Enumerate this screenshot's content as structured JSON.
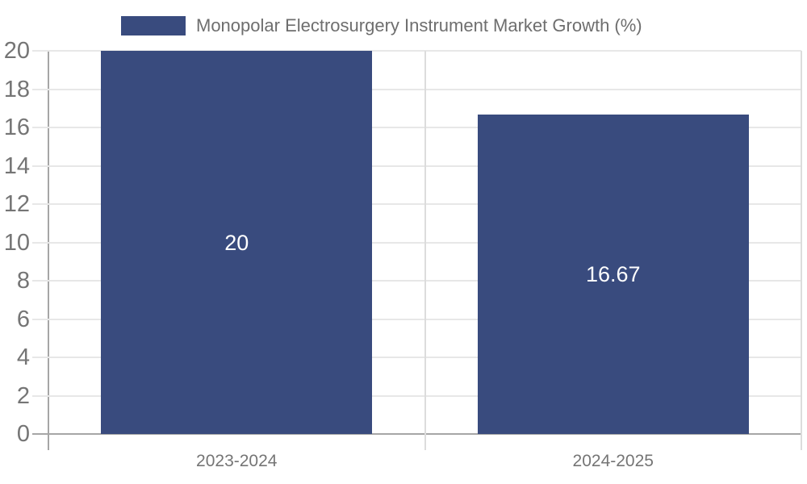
{
  "chart_data": {
    "type": "bar",
    "title": "Monopolar Electrosurgery Instrument Market Growth (%)",
    "categories": [
      "2023-2024",
      "2024-2025"
    ],
    "values": [
      20,
      16.67
    ],
    "bar_labels": [
      "20",
      "16.67"
    ],
    "ylabel": "",
    "xlabel": "",
    "ylim": [
      0,
      20
    ],
    "yticks": [
      0,
      2,
      4,
      6,
      8,
      10,
      12,
      14,
      16,
      18,
      20
    ],
    "grid": true,
    "legend_position": "top-center",
    "colors": {
      "bar": "#394B7E",
      "grid": "#e7e7e7",
      "boundary_grid": "#dcdcdc",
      "axis": "#a6a6a6",
      "tick_label": "#757575",
      "legend_label": "#6e6e6e",
      "bar_label": "#ffffff",
      "background": "#ffffff"
    }
  }
}
